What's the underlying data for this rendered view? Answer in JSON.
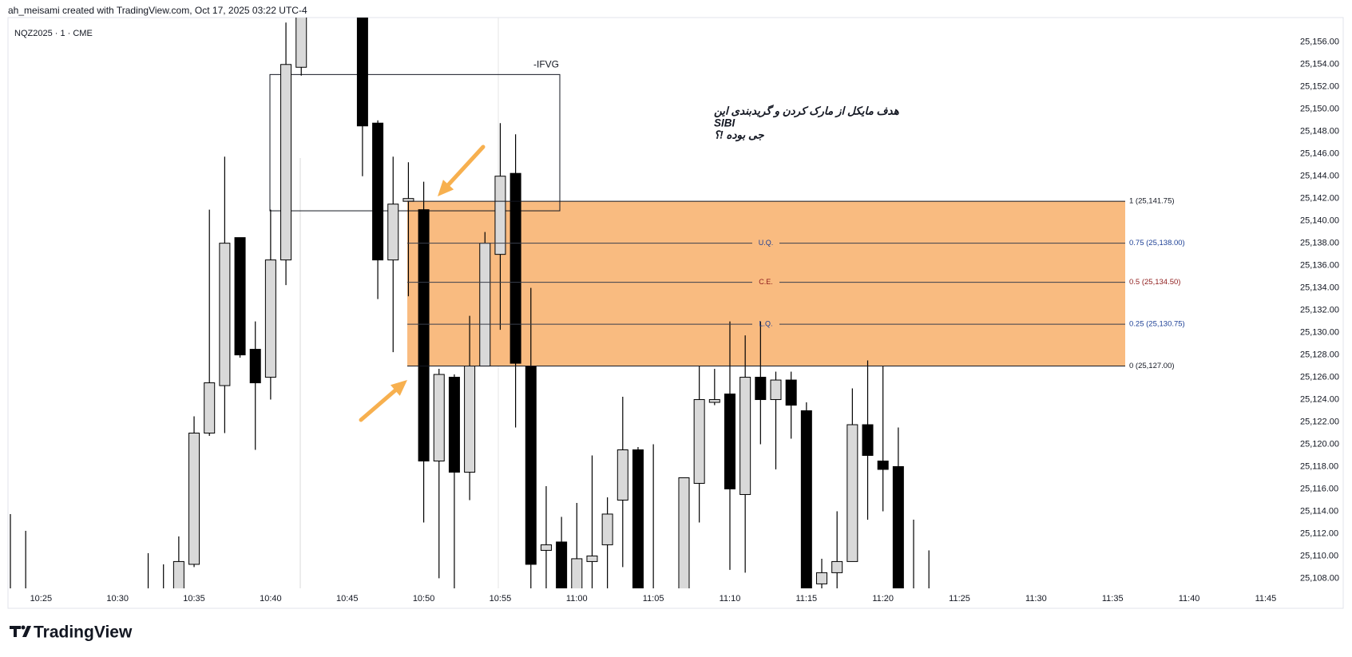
{
  "header": {
    "credit": "ah_meisami created with TradingView.com, Oct 17, 2025 03:22 UTC-4",
    "symbol": "NQZ2025 · 1 · CME",
    "brand": "TradingView"
  },
  "chart_data": {
    "type": "candlestick",
    "categories": [
      null,
      null,
      "10:25",
      null,
      null,
      null,
      null,
      "10:30",
      null,
      null,
      null,
      null,
      "10:35",
      null,
      null,
      null,
      null,
      "10:40",
      null,
      null,
      null,
      null,
      "10:45",
      null,
      null,
      null,
      null,
      "10:50",
      null,
      null,
      null,
      null,
      "10:55",
      null,
      null,
      null,
      null,
      "11:00",
      null,
      null,
      null,
      null,
      "11:05",
      null,
      null,
      null,
      null,
      "11:10",
      null,
      null,
      null,
      null,
      "11:15",
      null,
      null,
      null,
      null,
      "11:20",
      null,
      null,
      null,
      null,
      "11:25",
      null,
      null,
      null,
      null,
      "11:30",
      null,
      null,
      null,
      null,
      "11:35",
      null,
      null,
      null,
      null,
      "11:40",
      null,
      null,
      null,
      null,
      "11:45",
      null
    ],
    "open": [
      25106,
      25106,
      null,
      null,
      null,
      null,
      null,
      null,
      null,
      25106,
      25106.5,
      25106.5,
      25109.25,
      25121,
      25125.25,
      25138.5,
      25128.5,
      25126,
      25136.5,
      25153.75,
      null,
      null,
      null,
      25160,
      25148.75,
      25136.5,
      25141.75,
      25141,
      25118.5,
      25126,
      25117.5,
      25127,
      25137,
      25144.25,
      25127,
      25110.5,
      25111.25,
      25106,
      25109.5,
      25111,
      25115,
      25119.5,
      25106,
      null,
      25106,
      25116.5,
      25123.75,
      25124.5,
      25115.5,
      25126,
      25124,
      25125.75,
      25123,
      25107.5,
      25108.5,
      25109.5,
      25121.75,
      25118.5,
      25118,
      25106.5,
      25106,
      null,
      null,
      null,
      null,
      null,
      null,
      null,
      null,
      null,
      null,
      null,
      null,
      null,
      null,
      null,
      null,
      null,
      null,
      null,
      null,
      null,
      null,
      null
    ],
    "high": [
      25113.75,
      25112.25,
      null,
      null,
      null,
      null,
      null,
      null,
      null,
      25110.25,
      25109.25,
      25111.75,
      25122.5,
      25141,
      25145.75,
      25138.5,
      25131,
      25141,
      25157.75,
      25161,
      null,
      null,
      null,
      25162,
      25149,
      25145.75,
      25145.25,
      25143.5,
      25126.75,
      25126.25,
      25131.5,
      25139,
      25148.75,
      25147.75,
      25134,
      25116.25,
      25113.5,
      25114.75,
      25119,
      25115.25,
      25124.25,
      25119.75,
      25120,
      null,
      25117,
      25127,
      25126.75,
      25131,
      25129.75,
      25131,
      25126.5,
      25126.5,
      25123.75,
      25109.75,
      25114,
      25125,
      25127.5,
      25127,
      25121.5,
      25113.25,
      25110.5,
      null,
      null,
      null,
      null,
      null,
      null,
      null,
      null,
      null,
      null,
      null,
      null,
      null,
      null,
      null,
      null,
      null,
      null,
      null,
      null,
      null,
      null,
      null
    ],
    "low": [
      25105,
      25105,
      null,
      null,
      null,
      null,
      null,
      null,
      null,
      25105,
      25105,
      25106.5,
      25109,
      25120.75,
      25121,
      25127.75,
      25119.5,
      25124,
      25134.25,
      25153,
      null,
      null,
      null,
      25144,
      25133,
      25128.25,
      25133.25,
      25113,
      25108,
      25106,
      25115,
      25127,
      25130.25,
      25121.5,
      25107,
      25106,
      25105,
      25105,
      25106,
      25106,
      25109,
      25105,
      25105,
      null,
      25105,
      25113,
      25123.5,
      25108.75,
      25108.5,
      25120,
      25117.75,
      25120.5,
      25105,
      25107,
      25107,
      25109.5,
      25113.25,
      25114,
      25105,
      25105,
      25105,
      null,
      null,
      null,
      null,
      null,
      null,
      null,
      null,
      null,
      null,
      null,
      null,
      null,
      null,
      null,
      null,
      null,
      null,
      null,
      null,
      null,
      null,
      null
    ],
    "close": [
      25105.5,
      25105.5,
      null,
      null,
      null,
      null,
      null,
      null,
      null,
      25106.5,
      25107,
      25109.5,
      25121,
      25125.5,
      25138,
      25128,
      25125.5,
      25136.5,
      25154,
      25160,
      null,
      null,
      null,
      25148.5,
      25136.5,
      25141.5,
      25142,
      25118.5,
      25126.25,
      25117.5,
      25127,
      25138,
      25144,
      25127.25,
      25109.25,
      25111,
      25106,
      25109.75,
      25110,
      25113.75,
      25119.5,
      25106,
      25106.5,
      null,
      25117,
      25124,
      25124,
      25116,
      25126,
      25124,
      25125.75,
      25123.5,
      25106,
      25108.5,
      25109.5,
      25121.75,
      25119,
      25117.75,
      25106,
      25106,
      25105.5,
      null,
      null,
      null,
      null,
      null,
      null,
      null,
      null,
      null,
      null,
      null,
      null,
      null,
      null,
      null,
      null,
      null,
      null,
      null,
      null,
      null,
      null,
      null
    ],
    "up_color": "#d9d9d9",
    "down_color": "#000000",
    "ylim": [
      25107.1,
      25158.2
    ],
    "yticks": [
      {
        "value": 25108,
        "label": "25,108.00"
      },
      {
        "value": 25110,
        "label": "25,110.00"
      },
      {
        "value": 25112,
        "label": "25,112.00"
      },
      {
        "value": 25114,
        "label": "25,114.00"
      },
      {
        "value": 25116,
        "label": "25,116.00"
      },
      {
        "value": 25118,
        "label": "25,118.00"
      },
      {
        "value": 25120,
        "label": "25,120.00"
      },
      {
        "value": 25122,
        "label": "25,122.00"
      },
      {
        "value": 25124,
        "label": "25,124.00"
      },
      {
        "value": 25126,
        "label": "25,126.00"
      },
      {
        "value": 25128,
        "label": "25,128.00"
      },
      {
        "value": 25130,
        "label": "25,130.00"
      },
      {
        "value": 25132,
        "label": "25,132.00"
      },
      {
        "value": 25134,
        "label": "25,134.00"
      },
      {
        "value": 25136,
        "label": "25,136.00"
      },
      {
        "value": 25138,
        "label": "25,138.00"
      },
      {
        "value": 25140,
        "label": "25,140.00"
      },
      {
        "value": 25142,
        "label": "25,142.00"
      },
      {
        "value": 25144,
        "label": "25,144.00"
      },
      {
        "value": 25146,
        "label": "25,146.00"
      },
      {
        "value": 25148,
        "label": "25,148.00"
      },
      {
        "value": 25150,
        "label": "25,150.00"
      },
      {
        "value": 25152,
        "label": "25,152.00"
      },
      {
        "value": 25154,
        "label": "25,154.00"
      },
      {
        "value": 25156,
        "label": "25,156.00"
      }
    ],
    "grid": false,
    "ifvg": {
      "label": "-IFVG",
      "top": 25153.1,
      "bottom": 25140.9
    },
    "zone_color": "#f9bb80",
    "levels": [
      {
        "value": 25141.75,
        "label": "1 (25,141.75)",
        "color": "#131722"
      },
      {
        "value": 25138,
        "label": "0.75 (25,138.00)",
        "tag": "U.Q.",
        "color": "#1c3f95"
      },
      {
        "value": 25134.5,
        "label": "0.5 (25,134.50)",
        "tag": "C.E.",
        "color": "#8e1b1b"
      },
      {
        "value": 25130.75,
        "label": "0.25 (25,130.75)",
        "tag": "L.Q.",
        "color": "#1c3f95"
      },
      {
        "value": 25127,
        "label": "0 (25,127.00)",
        "color": "#131722"
      }
    ],
    "note": [
      "هدف مایکل از مارک کردن و گریدبندی این",
      "SIBI",
      "جی بوده !؟"
    ]
  }
}
